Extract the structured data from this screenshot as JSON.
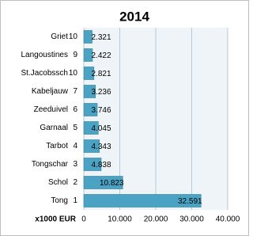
{
  "chart_data": {
    "type": "bar",
    "orientation": "horizontal",
    "title": "2014",
    "categories": [
      "Griet",
      "Langoustines",
      "St.Jacobssch",
      "Kabeljauw",
      "Zeeduivel",
      "Garnaal",
      "Tarbot",
      "Tongschar",
      "Schol",
      "Tong"
    ],
    "ranks": [
      10,
      9,
      10,
      7,
      6,
      5,
      4,
      3,
      2,
      1
    ],
    "values": [
      2321,
      2422,
      2821,
      3236,
      3746,
      4045,
      4343,
      4838,
      10823,
      32591
    ],
    "value_labels": [
      "2.321",
      "2.422",
      "2.821",
      "3.236",
      "3.746",
      "4.045",
      "4.343",
      "4.838",
      "10.823",
      "32.591"
    ],
    "color": "#4aa3c3",
    "x_label": "x1000 EUR",
    "xlim": [
      0,
      40000
    ],
    "xticks": [
      0,
      {
        "value": 10000,
        "label": "10.000"
      },
      {
        "value": 20000,
        "label": "20.000"
      },
      {
        "value": 30000,
        "label": "30.000"
      },
      {
        "value": 40000,
        "label": "40.000"
      }
    ],
    "grid": true
  }
}
